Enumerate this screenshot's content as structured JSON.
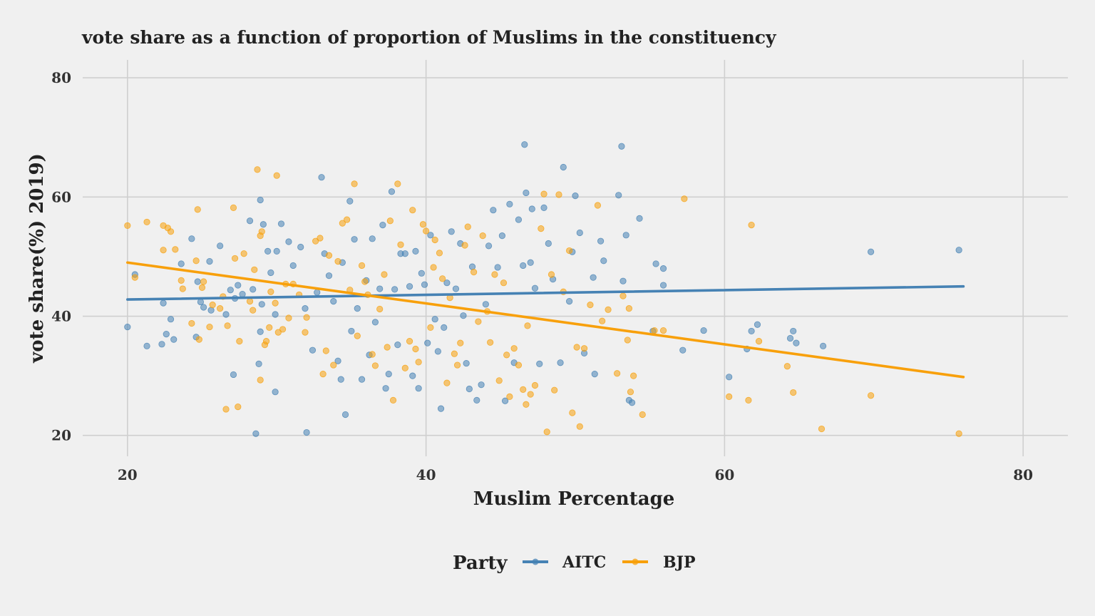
{
  "chart_data": {
    "type": "scatter",
    "title": "vote share as a function of proportion of Muslims in the constituency",
    "xlabel": "Muslim Percentage",
    "ylabel": "vote share(%) 2019)",
    "xlim": [
      17,
      83
    ],
    "ylim": [
      16.5,
      83
    ],
    "xticks": [
      20,
      40,
      60,
      80
    ],
    "yticks": [
      20,
      40,
      60,
      80
    ],
    "grid": true,
    "legend": {
      "title": "Party",
      "position": "bottom",
      "items": [
        "AITC",
        "BJP"
      ]
    },
    "series": [
      {
        "name": "AITC",
        "color": "#4682b4",
        "trend": [
          [
            20,
            42.8
          ],
          [
            76,
            45.0
          ]
        ],
        "points": [
          [
            20.0,
            38.2
          ],
          [
            20.5,
            47.0
          ],
          [
            21.3,
            35.0
          ],
          [
            22.3,
            35.3
          ],
          [
            22.4,
            42.2
          ],
          [
            22.6,
            37.0
          ],
          [
            22.9,
            39.5
          ],
          [
            23.1,
            36.1
          ],
          [
            23.6,
            48.8
          ],
          [
            24.3,
            53.0
          ],
          [
            24.6,
            36.5
          ],
          [
            24.7,
            45.8
          ],
          [
            24.9,
            42.4
          ],
          [
            25.1,
            41.5
          ],
          [
            25.5,
            49.2
          ],
          [
            25.6,
            41.0
          ],
          [
            26.2,
            51.8
          ],
          [
            26.6,
            40.3
          ],
          [
            26.9,
            44.4
          ],
          [
            27.1,
            30.2
          ],
          [
            27.2,
            43.0
          ],
          [
            27.4,
            45.2
          ],
          [
            27.7,
            43.7
          ],
          [
            28.2,
            56.0
          ],
          [
            28.4,
            44.5
          ],
          [
            28.6,
            20.3
          ],
          [
            28.8,
            32.0
          ],
          [
            28.9,
            37.4
          ],
          [
            28.9,
            59.5
          ],
          [
            29.0,
            42.0
          ],
          [
            29.1,
            55.4
          ],
          [
            29.4,
            50.9
          ],
          [
            29.6,
            47.3
          ],
          [
            29.9,
            40.3
          ],
          [
            29.9,
            27.3
          ],
          [
            30.0,
            50.9
          ],
          [
            30.3,
            55.5
          ],
          [
            30.8,
            52.5
          ],
          [
            31.1,
            48.5
          ],
          [
            31.6,
            51.6
          ],
          [
            31.9,
            41.3
          ],
          [
            32.0,
            20.5
          ],
          [
            32.4,
            34.3
          ],
          [
            32.7,
            44.0
          ],
          [
            33.0,
            63.3
          ],
          [
            33.2,
            50.5
          ],
          [
            33.5,
            46.8
          ],
          [
            33.8,
            42.5
          ],
          [
            34.1,
            32.5
          ],
          [
            34.3,
            29.4
          ],
          [
            34.4,
            49.0
          ],
          [
            34.6,
            23.5
          ],
          [
            34.9,
            59.3
          ],
          [
            35.0,
            37.5
          ],
          [
            35.2,
            52.9
          ],
          [
            35.4,
            41.3
          ],
          [
            35.7,
            29.4
          ],
          [
            36.0,
            46.0
          ],
          [
            36.2,
            33.5
          ],
          [
            36.4,
            53.0
          ],
          [
            36.6,
            39.0
          ],
          [
            36.9,
            44.6
          ],
          [
            37.1,
            55.3
          ],
          [
            37.3,
            27.9
          ],
          [
            37.5,
            30.3
          ],
          [
            37.7,
            60.9
          ],
          [
            37.9,
            44.5
          ],
          [
            38.1,
            35.2
          ],
          [
            38.3,
            50.5
          ],
          [
            38.6,
            50.5
          ],
          [
            38.9,
            45.0
          ],
          [
            39.1,
            30.0
          ],
          [
            39.3,
            50.9
          ],
          [
            39.5,
            27.9
          ],
          [
            39.7,
            47.2
          ],
          [
            39.9,
            45.3
          ],
          [
            40.1,
            35.5
          ],
          [
            40.3,
            53.6
          ],
          [
            40.6,
            39.5
          ],
          [
            40.8,
            34.1
          ],
          [
            41.0,
            24.5
          ],
          [
            41.2,
            38.1
          ],
          [
            41.4,
            45.6
          ],
          [
            41.7,
            54.2
          ],
          [
            42.0,
            44.6
          ],
          [
            42.3,
            52.2
          ],
          [
            42.5,
            40.1
          ],
          [
            42.7,
            32.1
          ],
          [
            42.9,
            27.8
          ],
          [
            43.1,
            48.3
          ],
          [
            43.4,
            25.9
          ],
          [
            43.7,
            28.5
          ],
          [
            44.0,
            42.0
          ],
          [
            44.2,
            51.8
          ],
          [
            44.5,
            57.8
          ],
          [
            44.8,
            48.2
          ],
          [
            45.1,
            53.5
          ],
          [
            45.3,
            25.8
          ],
          [
            45.6,
            58.8
          ],
          [
            45.9,
            32.2
          ],
          [
            46.2,
            56.2
          ],
          [
            46.5,
            48.5
          ],
          [
            46.6,
            68.8
          ],
          [
            46.7,
            60.7
          ],
          [
            47.0,
            49.0
          ],
          [
            47.1,
            58.0
          ],
          [
            47.3,
            44.7
          ],
          [
            47.6,
            32.0
          ],
          [
            47.9,
            58.2
          ],
          [
            48.2,
            52.2
          ],
          [
            48.5,
            46.2
          ],
          [
            49.0,
            32.2
          ],
          [
            49.2,
            65.0
          ],
          [
            49.6,
            42.5
          ],
          [
            49.8,
            50.8
          ],
          [
            50.0,
            60.2
          ],
          [
            50.3,
            54.0
          ],
          [
            50.6,
            33.8
          ],
          [
            51.2,
            46.5
          ],
          [
            51.3,
            30.3
          ],
          [
            51.7,
            52.6
          ],
          [
            51.9,
            49.3
          ],
          [
            52.9,
            60.3
          ],
          [
            53.1,
            68.5
          ],
          [
            53.2,
            45.9
          ],
          [
            53.4,
            53.6
          ],
          [
            53.6,
            25.9
          ],
          [
            53.8,
            25.5
          ],
          [
            54.3,
            56.4
          ],
          [
            55.2,
            37.5
          ],
          [
            55.4,
            48.8
          ],
          [
            55.9,
            48.0
          ],
          [
            55.9,
            45.2
          ],
          [
            57.2,
            34.3
          ],
          [
            58.6,
            37.6
          ],
          [
            60.3,
            29.8
          ],
          [
            61.5,
            34.5
          ],
          [
            61.8,
            37.5
          ],
          [
            62.2,
            38.6
          ],
          [
            64.4,
            36.3
          ],
          [
            64.6,
            37.5
          ],
          [
            64.8,
            35.5
          ],
          [
            66.6,
            35.0
          ],
          [
            69.8,
            50.8
          ],
          [
            75.7,
            51.1
          ]
        ]
      },
      {
        "name": "BJP",
        "color": "#f8a00b",
        "trend": [
          [
            20,
            49.0
          ],
          [
            76,
            29.8
          ]
        ],
        "points": [
          [
            20.0,
            55.2
          ],
          [
            20.5,
            46.5
          ],
          [
            21.3,
            55.8
          ],
          [
            22.4,
            55.2
          ],
          [
            22.4,
            51.1
          ],
          [
            22.7,
            54.8
          ],
          [
            22.9,
            54.2
          ],
          [
            23.2,
            51.2
          ],
          [
            23.6,
            46.0
          ],
          [
            23.7,
            44.6
          ],
          [
            24.3,
            38.8
          ],
          [
            24.6,
            49.3
          ],
          [
            24.7,
            57.9
          ],
          [
            24.8,
            36.1
          ],
          [
            25.0,
            44.8
          ],
          [
            25.1,
            45.8
          ],
          [
            25.5,
            38.2
          ],
          [
            25.7,
            41.9
          ],
          [
            26.2,
            41.3
          ],
          [
            26.4,
            43.3
          ],
          [
            26.6,
            24.4
          ],
          [
            26.7,
            38.4
          ],
          [
            27.1,
            58.2
          ],
          [
            27.2,
            49.7
          ],
          [
            27.4,
            24.8
          ],
          [
            27.5,
            35.8
          ],
          [
            27.8,
            50.5
          ],
          [
            28.2,
            42.5
          ],
          [
            28.4,
            41.0
          ],
          [
            28.5,
            47.8
          ],
          [
            28.7,
            64.6
          ],
          [
            28.9,
            29.3
          ],
          [
            28.9,
            53.5
          ],
          [
            29.0,
            54.2
          ],
          [
            29.2,
            35.2
          ],
          [
            29.3,
            35.8
          ],
          [
            29.5,
            38.1
          ],
          [
            29.6,
            44.1
          ],
          [
            29.9,
            42.2
          ],
          [
            30.0,
            63.6
          ],
          [
            30.1,
            37.3
          ],
          [
            30.4,
            37.8
          ],
          [
            30.6,
            45.4
          ],
          [
            30.8,
            39.7
          ],
          [
            31.1,
            45.4
          ],
          [
            31.5,
            43.6
          ],
          [
            31.9,
            37.3
          ],
          [
            32.0,
            39.8
          ],
          [
            32.6,
            52.6
          ],
          [
            32.9,
            53.1
          ],
          [
            33.1,
            30.3
          ],
          [
            33.3,
            34.2
          ],
          [
            33.5,
            50.2
          ],
          [
            33.8,
            31.8
          ],
          [
            34.1,
            49.2
          ],
          [
            34.4,
            55.6
          ],
          [
            34.7,
            56.2
          ],
          [
            34.9,
            44.4
          ],
          [
            35.2,
            62.2
          ],
          [
            35.4,
            36.7
          ],
          [
            35.7,
            48.5
          ],
          [
            35.9,
            45.8
          ],
          [
            36.1,
            43.6
          ],
          [
            36.4,
            33.6
          ],
          [
            36.6,
            31.7
          ],
          [
            36.9,
            41.2
          ],
          [
            37.2,
            47.0
          ],
          [
            37.4,
            34.8
          ],
          [
            37.6,
            56.0
          ],
          [
            37.8,
            25.9
          ],
          [
            38.1,
            62.2
          ],
          [
            38.3,
            52.0
          ],
          [
            38.6,
            31.3
          ],
          [
            38.9,
            35.8
          ],
          [
            39.1,
            57.8
          ],
          [
            39.3,
            34.5
          ],
          [
            39.5,
            32.3
          ],
          [
            39.8,
            55.4
          ],
          [
            40.0,
            54.3
          ],
          [
            40.3,
            38.1
          ],
          [
            40.5,
            48.2
          ],
          [
            40.6,
            52.8
          ],
          [
            40.9,
            50.6
          ],
          [
            41.1,
            46.3
          ],
          [
            41.4,
            28.8
          ],
          [
            41.6,
            43.1
          ],
          [
            41.9,
            33.7
          ],
          [
            42.1,
            31.8
          ],
          [
            42.3,
            35.5
          ],
          [
            42.6,
            51.9
          ],
          [
            42.8,
            55.0
          ],
          [
            43.2,
            47.4
          ],
          [
            43.5,
            39.1
          ],
          [
            43.8,
            53.5
          ],
          [
            44.1,
            40.8
          ],
          [
            44.3,
            35.6
          ],
          [
            44.6,
            47.0
          ],
          [
            44.9,
            29.2
          ],
          [
            45.2,
            45.6
          ],
          [
            45.4,
            33.5
          ],
          [
            45.6,
            26.5
          ],
          [
            45.9,
            34.6
          ],
          [
            46.2,
            31.8
          ],
          [
            46.5,
            27.7
          ],
          [
            46.7,
            25.2
          ],
          [
            46.8,
            38.4
          ],
          [
            47.0,
            26.9
          ],
          [
            47.3,
            28.4
          ],
          [
            47.7,
            54.7
          ],
          [
            47.9,
            60.5
          ],
          [
            48.1,
            20.6
          ],
          [
            48.4,
            47.0
          ],
          [
            48.6,
            27.6
          ],
          [
            48.9,
            60.4
          ],
          [
            49.2,
            44.1
          ],
          [
            49.6,
            51.0
          ],
          [
            49.8,
            23.8
          ],
          [
            50.1,
            34.8
          ],
          [
            50.3,
            21.5
          ],
          [
            50.6,
            34.6
          ],
          [
            51.0,
            41.9
          ],
          [
            51.5,
            58.6
          ],
          [
            51.8,
            39.2
          ],
          [
            52.2,
            41.1
          ],
          [
            52.8,
            30.4
          ],
          [
            53.2,
            43.4
          ],
          [
            53.5,
            36.0
          ],
          [
            53.6,
            41.3
          ],
          [
            53.7,
            27.3
          ],
          [
            53.9,
            30.0
          ],
          [
            54.5,
            23.5
          ],
          [
            55.3,
            37.6
          ],
          [
            55.9,
            37.6
          ],
          [
            57.3,
            59.7
          ],
          [
            60.3,
            26.5
          ],
          [
            61.6,
            25.9
          ],
          [
            61.8,
            55.3
          ],
          [
            62.3,
            35.8
          ],
          [
            64.2,
            31.6
          ],
          [
            64.6,
            27.2
          ],
          [
            66.5,
            21.1
          ],
          [
            69.8,
            26.7
          ],
          [
            75.7,
            20.3
          ]
        ]
      }
    ]
  }
}
